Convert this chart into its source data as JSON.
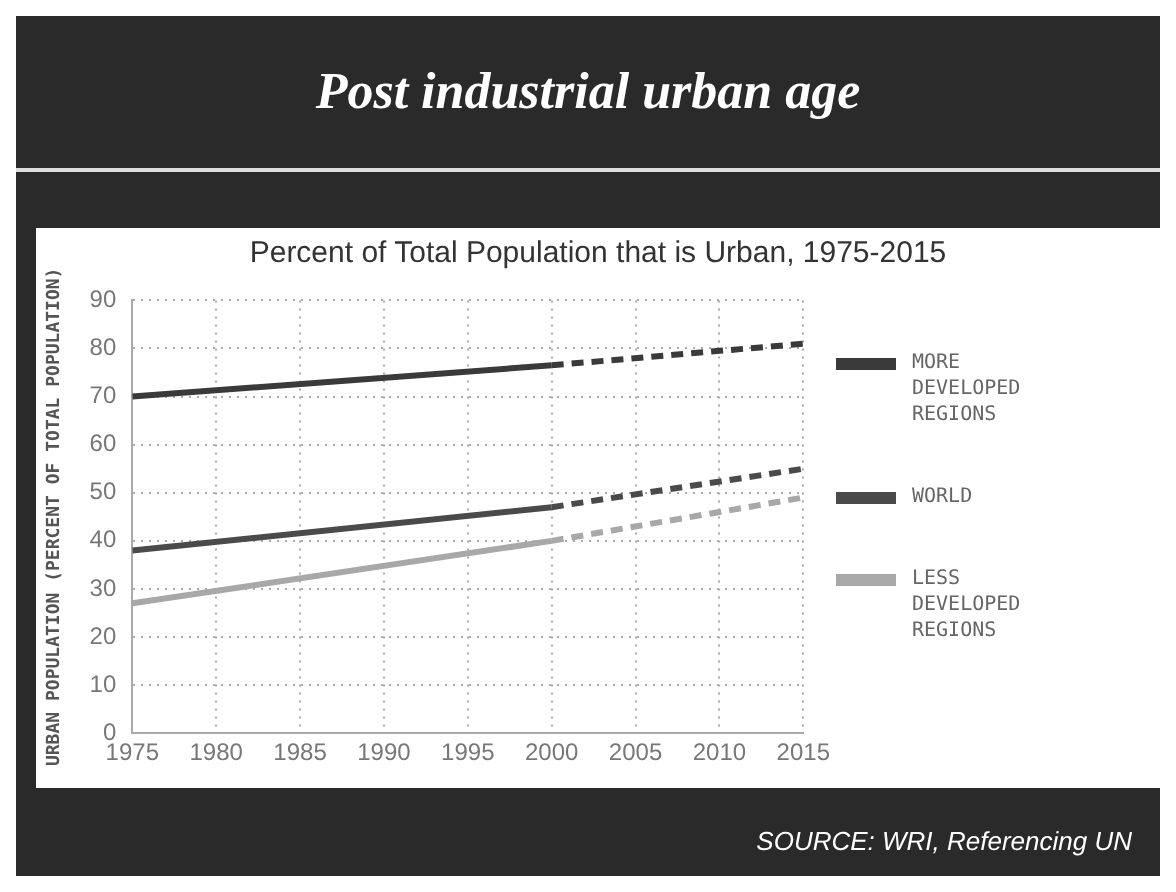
{
  "chart_data": {
    "type": "line",
    "title": "Post industrial urban age",
    "subtitle": "Percent of Total Population that is Urban, 1975-2015",
    "ylabel": "URBAN POPULATION (PERCENT OF TOTAL POPULATION)",
    "xlim": [
      1975,
      2015
    ],
    "xticks": [
      1975,
      1980,
      1985,
      1990,
      1995,
      2000,
      2005,
      2010,
      2015
    ],
    "ylim": [
      0,
      90
    ],
    "yticks": [
      0,
      10,
      20,
      30,
      40,
      50,
      60,
      70,
      80,
      90
    ],
    "grid": true,
    "legend": "right",
    "marker": "none",
    "series": [
      {
        "name": "MORE DEVELOPED REGIONS",
        "color": "#3a3a3a",
        "x": [
          1975,
          2000
        ],
        "values": [
          70,
          76.5
        ],
        "line_style": "solid"
      },
      {
        "name": "WORLD",
        "color": "#4a4a4a",
        "x": [
          1975,
          2000
        ],
        "values": [
          38,
          47
        ],
        "line_style": "solid"
      },
      {
        "name": "LESS DEVELOPED REGIONS",
        "color": "#a8a8a8",
        "x": [
          1975,
          2000
        ],
        "values": [
          27,
          40
        ],
        "line_style": "solid"
      },
      {
        "color": "#3a3a3a",
        "x": [
          2000,
          2015
        ],
        "values": [
          76.5,
          81
        ],
        "line_style": "dashed"
      },
      {
        "color": "#4a4a4a",
        "x": [
          2000,
          2015
        ],
        "values": [
          47,
          55
        ],
        "line_style": "dashed"
      },
      {
        "color": "#a8a8a8",
        "x": [
          2000,
          2015
        ],
        "values": [
          40,
          49
        ],
        "line_style": "dashed"
      }
    ],
    "annotations": [
      "SOURCE: WRI, Referencing UN"
    ]
  }
}
